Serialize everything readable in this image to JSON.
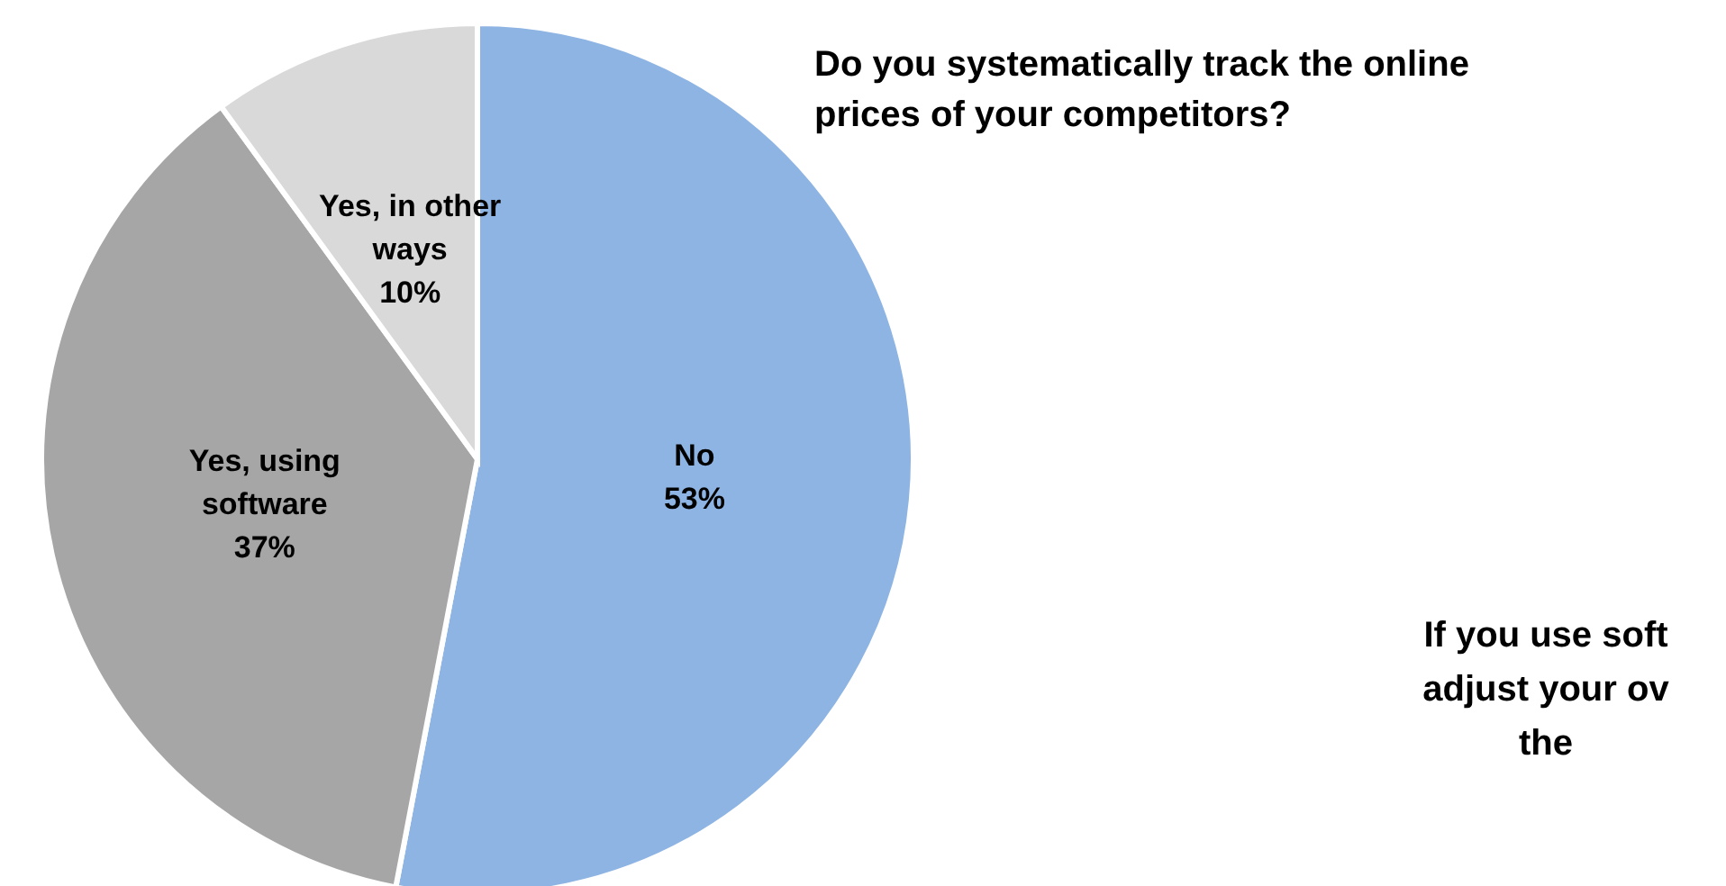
{
  "chart_data": {
    "type": "pie",
    "title": "Do you systematically track the online prices of your competitors?",
    "categories": [
      "No",
      "Yes, using software",
      "Yes, in other ways"
    ],
    "values": [
      53,
      37,
      10
    ],
    "value_labels": [
      "53%",
      "37%",
      "10%"
    ],
    "colors": [
      "#8eb4e3",
      "#a6a6a6",
      "#d9d9d9"
    ],
    "annotations": [
      "If you use soft\nadjust your ov\nthe"
    ]
  }
}
